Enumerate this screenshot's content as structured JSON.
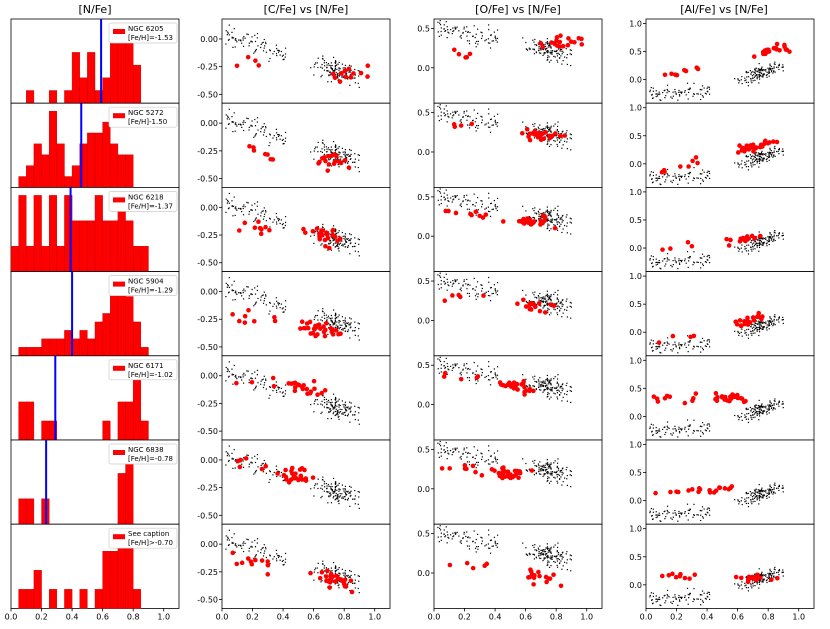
{
  "figure": {
    "column_titles": [
      "[N/Fe]",
      "[C/Fe] vs [N/Fe]",
      "[O/Fe] vs [N/Fe]",
      "[Al/Fe] vs [N/Fe]"
    ],
    "x_ticks": [
      "0.0",
      "0.2",
      "0.4",
      "0.6",
      "0.8",
      "1.0"
    ],
    "y_ticks_C": [
      "0.00",
      "-0.25",
      "-0.50"
    ],
    "y_ticks_O": [
      "0.5",
      "0.0"
    ],
    "y_ticks_Al": [
      "1.0",
      "0.5",
      "0.0"
    ]
  },
  "colors": {
    "highlight": "#ff0000",
    "background_points": "#000000",
    "median_line": "#0000ff"
  },
  "chart_data": {
    "type": "scatter",
    "description_xlabel": "[N/Fe]",
    "xlim": [
      0.0,
      1.1
    ],
    "series_ylim": {
      "C": [
        -0.58,
        0.18
      ],
      "O": [
        -0.45,
        0.62
      ],
      "Al": [
        -0.42,
        1.08
      ]
    },
    "hist_bins": [
      0.0,
      0.05,
      0.1,
      0.15,
      0.2,
      0.25,
      0.3,
      0.35,
      0.4,
      0.45,
      0.5,
      0.55,
      0.6,
      0.65,
      0.7,
      0.75,
      0.8,
      0.85,
      0.9
    ],
    "clusters": [
      {
        "name": "NGC 6205",
        "feh": "[Fe/H]=-1.53",
        "median_n": 0.59,
        "hist": [
          0,
          0,
          1,
          0,
          0,
          1,
          0,
          1,
          4,
          2,
          4,
          1,
          2,
          5,
          6,
          5,
          3,
          0
        ],
        "sel": {
          "C": [
            -0.2,
            -0.33
          ],
          "O": [
            0.1,
            0.33
          ],
          "Al": [
            -0.05,
            0.55
          ]
        }
      },
      {
        "name": "NGC 5272",
        "feh": "[Fe/H]-1.50",
        "median_n": 0.46,
        "hist": [
          0,
          1,
          2,
          4,
          3,
          7,
          4,
          1,
          2,
          4,
          5,
          5,
          6,
          4,
          3,
          3,
          0,
          0
        ],
        "sel": {
          "C": [
            -0.22,
            -0.35
          ],
          "O": [
            0.38,
            0.2
          ],
          "Al": [
            -0.22,
            0.42
          ]
        }
      },
      {
        "name": "NGC 6218",
        "feh": "[Fe/H]=-1.37",
        "median_n": 0.39,
        "hist": [
          1,
          3,
          1,
          3,
          1,
          3,
          1,
          3,
          2,
          2,
          2,
          3,
          2,
          2,
          3,
          2,
          1,
          1
        ],
        "sel": {
          "C": [
            -0.1,
            -0.3
          ],
          "O": [
            0.3,
            0.15
          ],
          "Al": [
            -0.05,
            0.22
          ]
        }
      },
      {
        "name": "NGC 5904",
        "feh": "[Fe/H]=-1.29",
        "median_n": 0.4,
        "hist": [
          0,
          1,
          1,
          1,
          2,
          2,
          2,
          3,
          2,
          3,
          2,
          4,
          5,
          8,
          9,
          7,
          4,
          1
        ],
        "sel": {
          "C": [
            -0.2,
            -0.38
          ],
          "O": [
            0.35,
            0.15
          ],
          "Al": [
            -0.2,
            0.3
          ]
        }
      },
      {
        "name": "NGC 6171",
        "feh": "[Fe/H]=-1.02",
        "median_n": 0.29,
        "hist": [
          0,
          2,
          2,
          0,
          1,
          1,
          0,
          0,
          0,
          0,
          0,
          0,
          1,
          0,
          2,
          2,
          4,
          1
        ],
        "sel": {
          "C": [
            0.0,
            -0.2
          ],
          "O": [
            0.4,
            0.15
          ],
          "Al": [
            0.3,
            0.35
          ]
        }
      },
      {
        "name": "NGC 6838",
        "feh": "[Fe/H]=-0.78",
        "median_n": 0.23,
        "hist": [
          0,
          1,
          1,
          0,
          1,
          0,
          0,
          0,
          0,
          0,
          0,
          0,
          0,
          0,
          2,
          3,
          0,
          0
        ],
        "sel": {
          "C": [
            0.0,
            -0.25
          ],
          "O": [
            0.3,
            0.1
          ],
          "Al": [
            0.15,
            0.25
          ]
        }
      },
      {
        "name": "See caption",
        "feh": "[Fe/H]>-0.70",
        "median_n": null,
        "hist": [
          0,
          1,
          1,
          2,
          0,
          1,
          0,
          1,
          0,
          1,
          0,
          1,
          3,
          3,
          4,
          4,
          1,
          0
        ],
        "sel": {
          "C": [
            -0.1,
            -0.35
          ],
          "O": [
            0.2,
            -0.1
          ],
          "Al": [
            0.15,
            0.1
          ]
        }
      }
    ]
  }
}
